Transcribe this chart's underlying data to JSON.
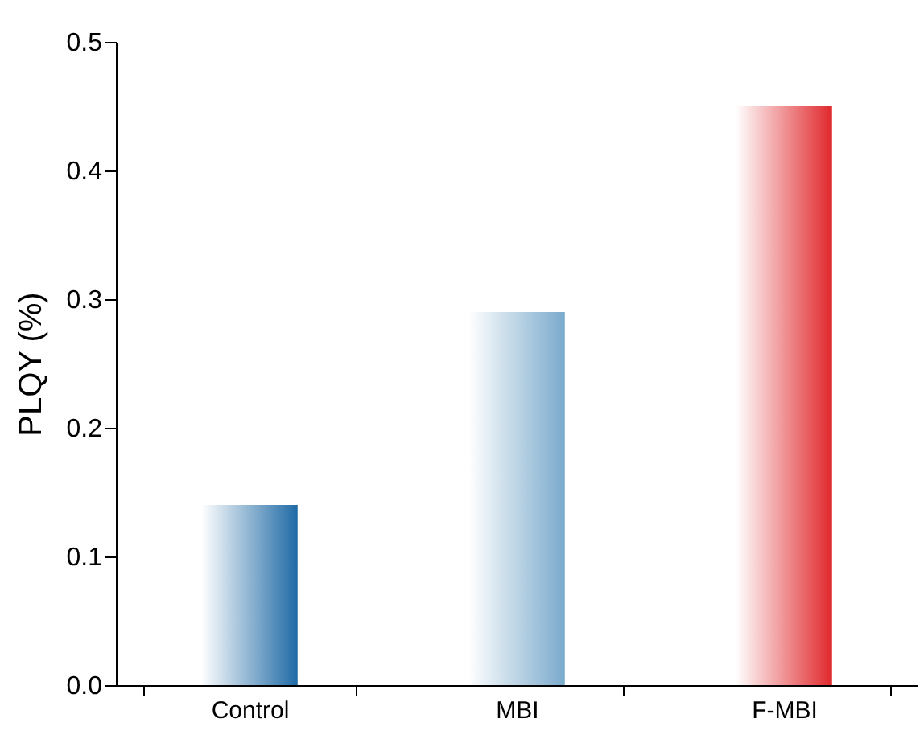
{
  "chart_data": {
    "type": "bar",
    "ylabel": "PLQY (%)",
    "categories": [
      "Control",
      "MBI",
      "F-MBI"
    ],
    "values": [
      0.14,
      0.29,
      0.45
    ],
    "colors": [
      "#1f6aa5",
      "#7aaacc",
      "#e0282c"
    ],
    "ylim": [
      0,
      0.5
    ],
    "yticks": [
      {
        "value": 0,
        "label": "0.0"
      },
      0.1,
      0.2,
      0.3,
      0.4,
      0.5
    ],
    "grid": false
  }
}
